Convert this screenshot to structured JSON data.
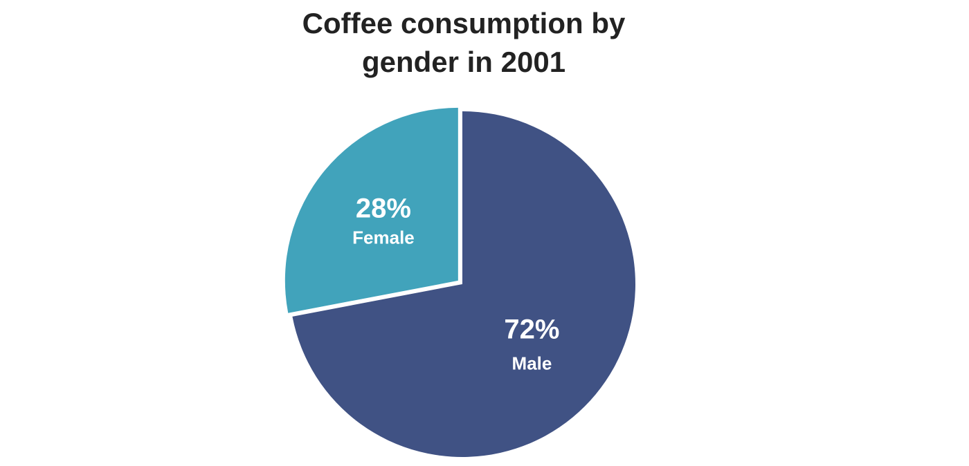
{
  "chart_data": {
    "type": "pie",
    "title_lines": [
      "Coffee consumption by",
      "gender in 2001"
    ],
    "slices": [
      {
        "name": "Female",
        "value": 28,
        "label": "28%",
        "color": "#41a3bb"
      },
      {
        "name": "Male",
        "value": 72,
        "label": "72%",
        "color": "#405284"
      }
    ]
  }
}
